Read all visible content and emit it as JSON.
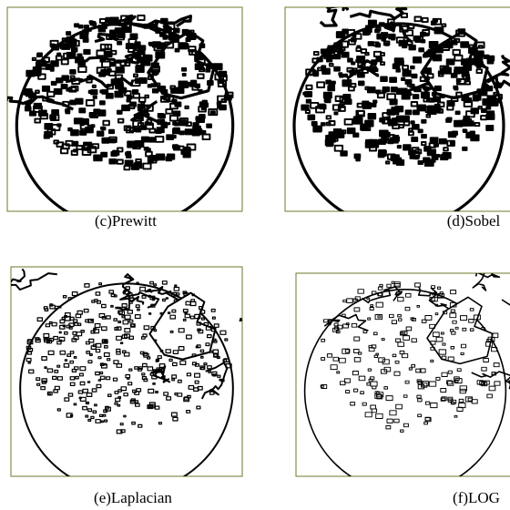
{
  "figure": {
    "panels": [
      {
        "caption": "(c)Prewitt"
      },
      {
        "caption": "(d)Sobel"
      },
      {
        "caption": "(e)Laplacian"
      },
      {
        "caption": "(f)LOG"
      }
    ]
  }
}
